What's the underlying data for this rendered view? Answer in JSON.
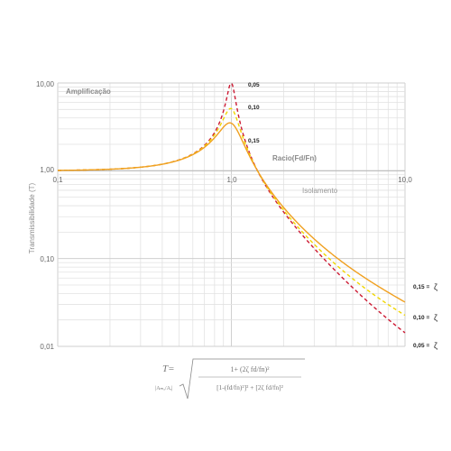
{
  "chart_data": {
    "type": "line",
    "xscale": "log",
    "yscale": "log",
    "xlim": [
      0.1,
      10
    ],
    "ylim": [
      0.01,
      10
    ],
    "x_tick_labels": [
      "0,1",
      "1,0",
      "10,0"
    ],
    "y_tick_labels": [
      "10,00",
      "1,00",
      "0,10",
      "0,01"
    ],
    "ylabel": "Transmissibilidade (T)",
    "xlabel": "Racio(Fd/Fn)",
    "grid": true,
    "annotations": [
      "Amplificação",
      "Isolamento"
    ],
    "legend_symbol": "ζ",
    "series": [
      {
        "name": "0,05",
        "zeta": 0.05,
        "color": "#cc1a33",
        "dash": "4,3",
        "peak_label": "0,05",
        "end_label": "0,05 ="
      },
      {
        "name": "0,10",
        "zeta": 0.1,
        "color": "#f0d600",
        "dash": "4,3",
        "peak_label": "0,10",
        "end_label": "0,10 ="
      },
      {
        "name": "0,15",
        "zeta": 0.15,
        "color": "#f0a020",
        "dash": "",
        "peak_label": "0,15",
        "end_label": "0,15 ="
      }
    ]
  },
  "formula": {
    "lhs": "T=",
    "abs_term": "|Aₘₐ/Aᵣ|",
    "numerator": "1+ (2ζ fd/fn)²",
    "denominator": "[1-(fd/fn)²]² + [2ζ fd/fn]²"
  }
}
